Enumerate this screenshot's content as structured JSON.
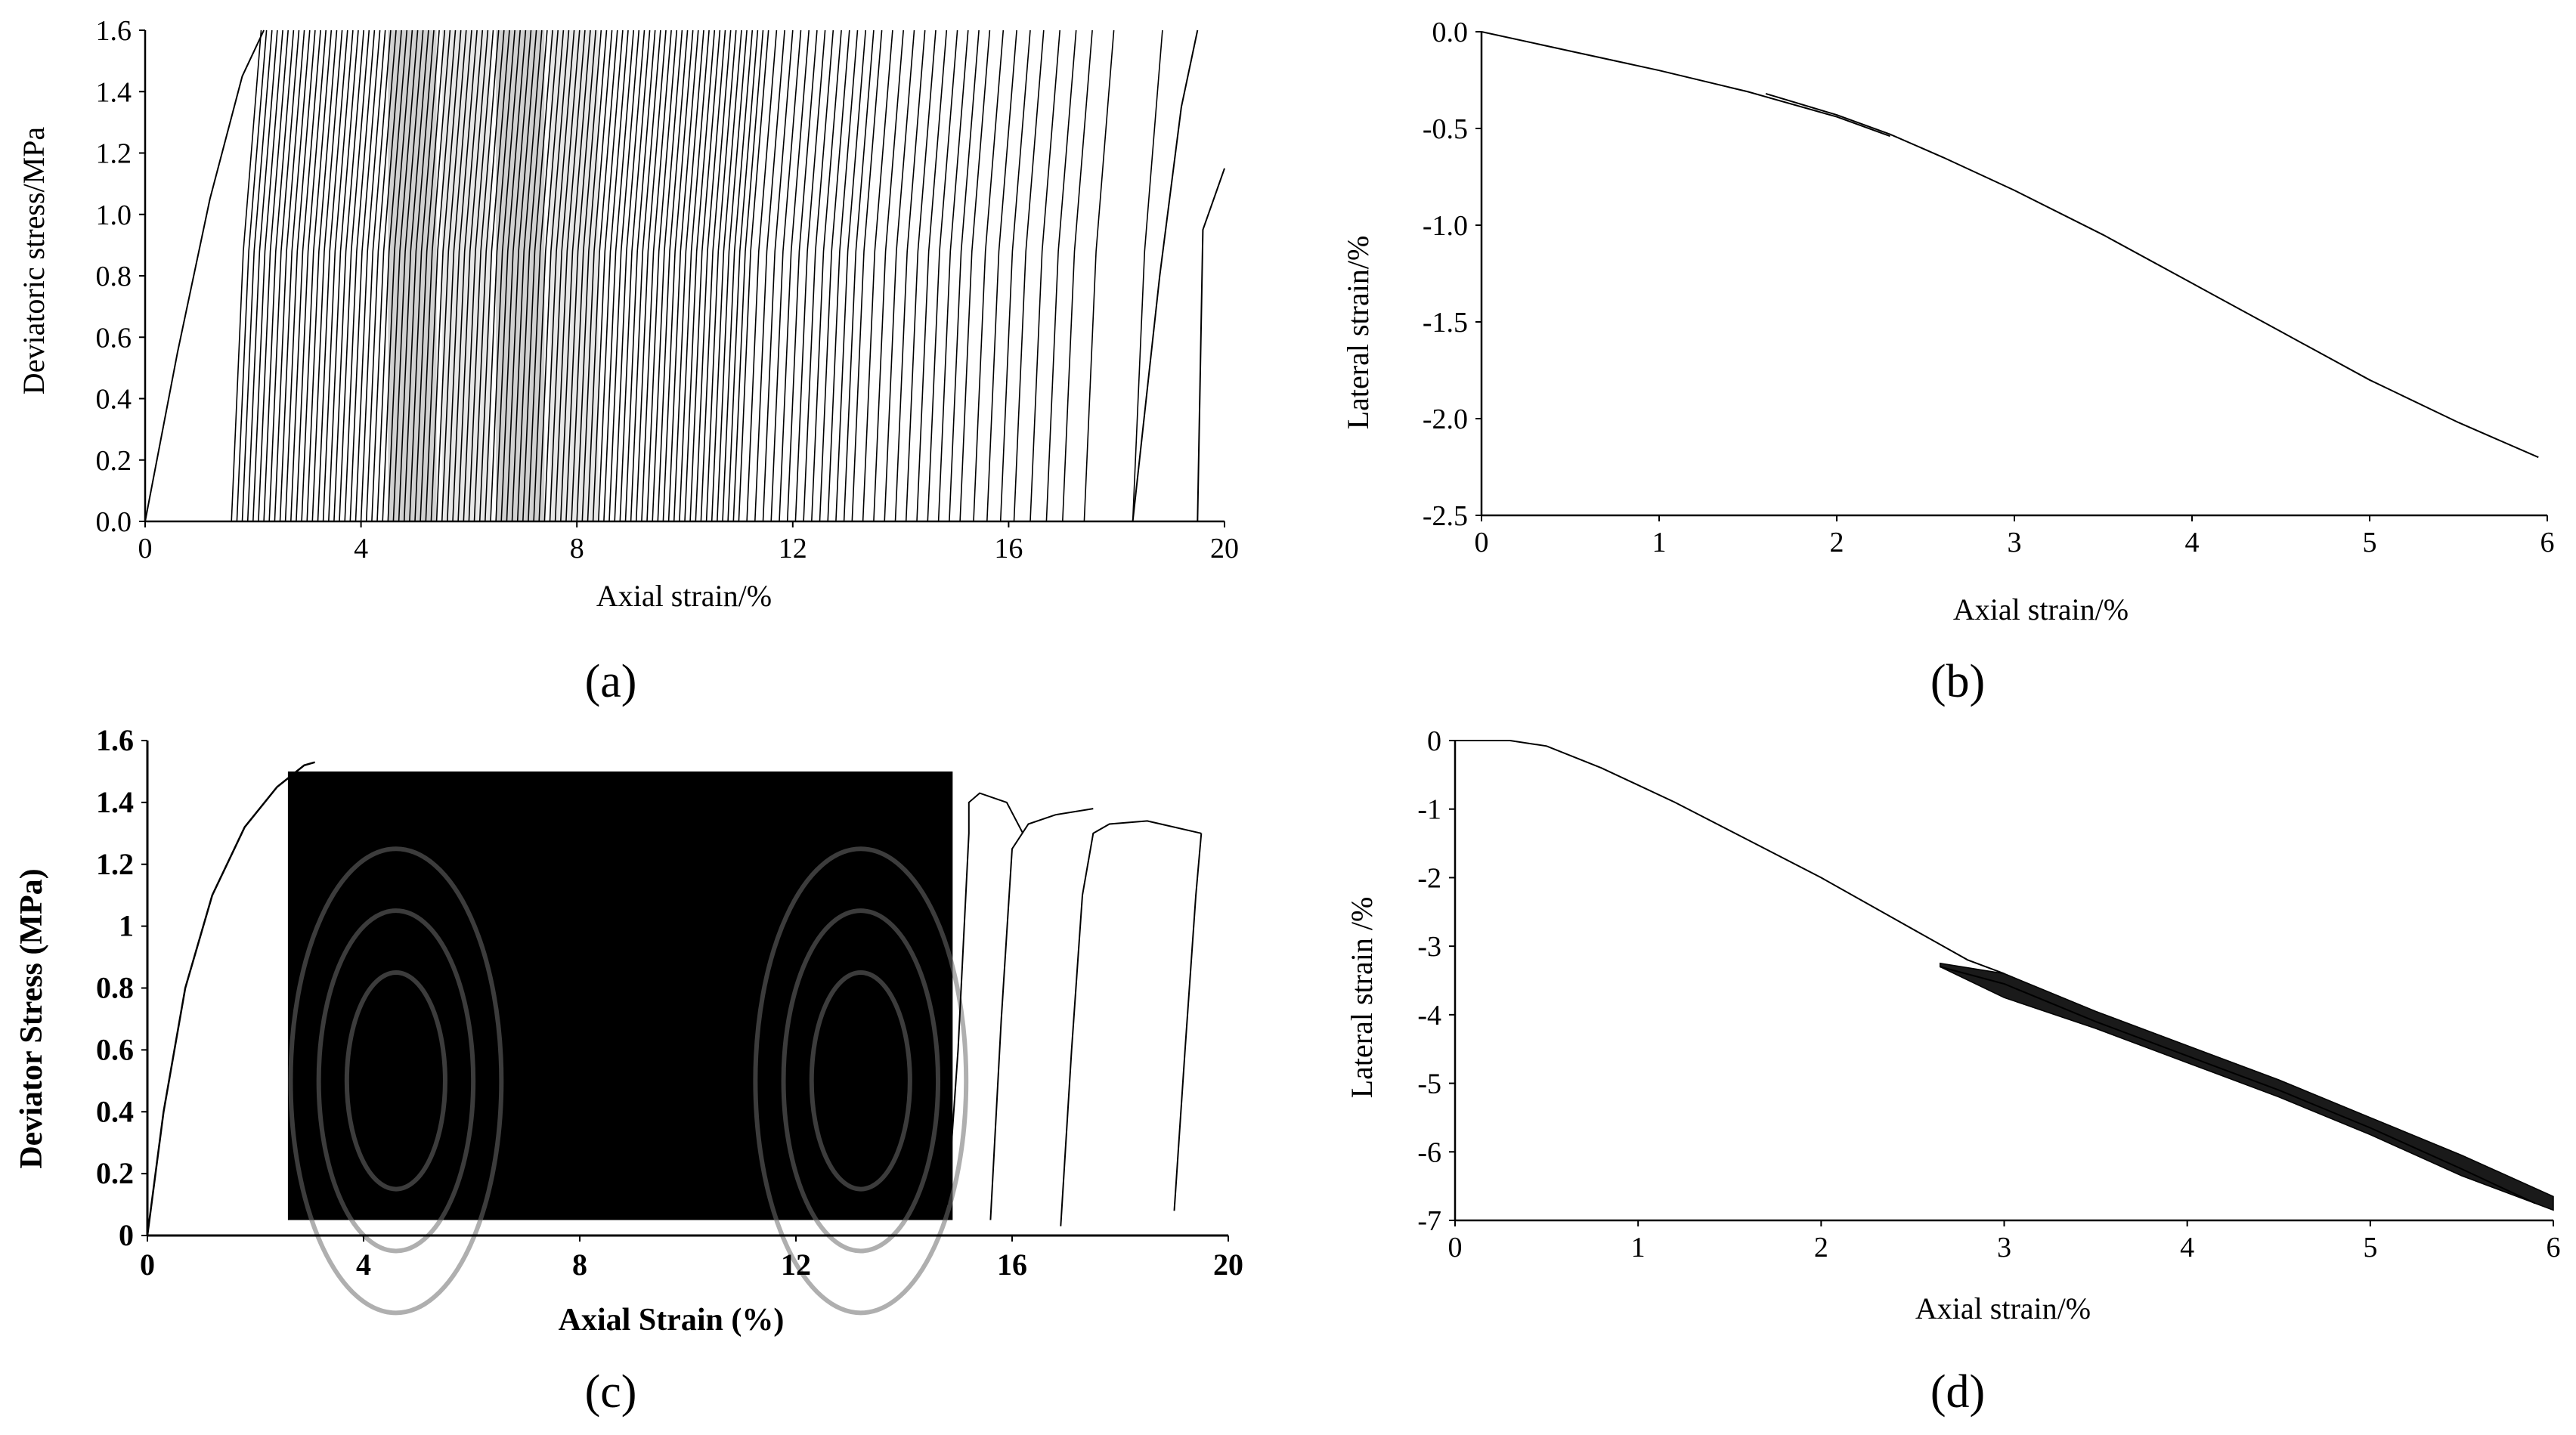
{
  "chart_data": [
    {
      "panel": "(a)",
      "type": "line",
      "xlabel": "Axial strain/%",
      "ylabel": "Deviatoric stress/MPa",
      "xlim": [
        0,
        20
      ],
      "ylim": [
        0,
        1.6
      ],
      "x_ticks": [
        "0",
        "4",
        "8",
        "12",
        "16",
        "20"
      ],
      "y_ticks": [
        "0.0",
        "0.2",
        "0.4",
        "0.6",
        "0.8",
        "1.0",
        "1.2",
        "1.4",
        "1.6"
      ],
      "x_tick_values": [
        0,
        4,
        8,
        12,
        16,
        20
      ],
      "y_tick_values": [
        0,
        0.2,
        0.4,
        0.6,
        0.8,
        1.0,
        1.2,
        1.4,
        1.6
      ],
      "initial_loading": {
        "x": [
          0,
          0.6,
          1.2,
          1.8,
          2.2
        ],
        "y": [
          0,
          0.55,
          1.05,
          1.45,
          1.6
        ]
      },
      "cycle_minima_x": [
        1.6,
        1.7,
        1.8,
        1.9,
        2.0,
        2.1,
        2.2,
        2.3,
        2.4,
        2.5,
        2.6,
        2.7,
        2.8,
        2.9,
        3.0,
        3.1,
        3.2,
        3.3,
        3.4,
        3.5,
        3.6,
        3.7,
        3.8,
        3.9,
        4.0,
        4.1,
        4.2,
        4.3,
        4.4,
        4.5,
        4.6,
        4.7,
        4.8,
        4.9,
        5.0,
        5.1,
        5.2,
        5.3,
        5.4,
        5.5,
        5.6,
        5.7,
        5.8,
        5.9,
        6.0,
        6.1,
        6.2,
        6.3,
        6.4,
        6.5,
        6.6,
        6.7,
        6.8,
        6.9,
        7.0,
        7.1,
        7.2,
        7.3,
        7.4,
        7.5,
        7.6,
        7.7,
        7.8,
        7.9,
        8.0,
        8.1,
        8.2,
        8.3,
        8.4,
        8.5,
        8.6,
        8.7,
        8.8,
        8.9,
        9.0,
        9.1,
        9.2,
        9.3,
        9.4,
        9.5,
        9.6,
        9.7,
        9.8,
        9.9,
        10.0,
        10.1,
        10.2,
        10.3,
        10.4,
        10.5,
        10.6,
        10.7,
        10.8,
        10.9,
        11.0,
        11.15,
        11.3,
        11.45,
        11.6,
        11.75,
        11.9,
        12.05,
        12.2,
        12.35,
        12.5,
        12.65,
        12.8,
        12.95,
        13.1,
        13.3,
        13.5,
        13.7,
        13.9,
        14.1,
        14.3,
        14.5,
        14.7,
        14.9,
        15.1,
        15.35,
        15.6,
        15.85,
        16.1,
        16.4,
        16.7,
        17.0,
        17.4,
        18.3
      ],
      "cycle_peak_offset": 0.55,
      "cycle_max_y": 1.6,
      "cycle_min_y": 0,
      "final_branch": {
        "x": [
          18.3,
          18.8,
          19.2,
          19.5
        ],
        "y": [
          0,
          0.8,
          1.35,
          1.6
        ]
      },
      "tail": {
        "x": [
          19.5,
          19.6,
          19.9,
          20.0
        ],
        "y": [
          0,
          0.95,
          1.1,
          1.15
        ]
      }
    },
    {
      "panel": "(b)",
      "type": "line",
      "xlabel": "Axial strain/%",
      "ylabel": "Lateral strain/%",
      "xlim": [
        0,
        6
      ],
      "ylim": [
        -2.5,
        0
      ],
      "x_ticks": [
        "0",
        "1",
        "2",
        "3",
        "4",
        "5",
        "6"
      ],
      "y_ticks": [
        "0.0",
        "-0.5",
        "-1.0",
        "-1.5",
        "-2.0",
        "-2.5"
      ],
      "x_tick_values": [
        0,
        1,
        2,
        3,
        4,
        5,
        6
      ],
      "y_tick_values": [
        0,
        -0.5,
        -1.0,
        -1.5,
        -2.0,
        -2.5
      ],
      "series": [
        {
          "x": [
            0,
            0.5,
            1.0,
            1.5,
            2.0,
            2.3
          ],
          "y": [
            0,
            -0.1,
            -0.2,
            -0.31,
            -0.44,
            -0.54
          ]
        },
        {
          "x": [
            1.6,
            2.0,
            2.3,
            2.6,
            3.0,
            3.5,
            4.0,
            4.5,
            5.0,
            5.5,
            5.95
          ],
          "y": [
            -0.32,
            -0.43,
            -0.53,
            -0.65,
            -0.82,
            -1.05,
            -1.3,
            -1.55,
            -1.8,
            -2.02,
            -2.2
          ]
        }
      ]
    },
    {
      "panel": "(c)",
      "type": "line",
      "xlabel": "Axial Strain (%)",
      "ylabel": "Deviator Stress (MPa)",
      "xlim": [
        0,
        20
      ],
      "ylim": [
        0,
        1.6
      ],
      "x_ticks": [
        "0",
        "4",
        "8",
        "12",
        "16",
        "20"
      ],
      "y_ticks": [
        "0",
        "0.2",
        "0.4",
        "0.6",
        "0.8",
        "1",
        "1.2",
        "1.4",
        "1.6"
      ],
      "x_tick_values": [
        0,
        4,
        8,
        12,
        16,
        20
      ],
      "y_tick_values": [
        0,
        0.2,
        0.4,
        0.6,
        0.8,
        1.0,
        1.2,
        1.4,
        1.6
      ],
      "initial_loading": {
        "x": [
          0,
          0.3,
          0.7,
          1.2,
          1.8,
          2.4,
          2.9,
          3.1
        ],
        "y": [
          0,
          0.4,
          0.8,
          1.1,
          1.32,
          1.45,
          1.52,
          1.53
        ]
      },
      "dense_region": {
        "x_start": 2.6,
        "x_end": 14.9,
        "y_low": 0.05,
        "y_high": 1.5
      },
      "late_cycles": [
        {
          "x": [
            14.8,
            15.0,
            15.2,
            15.2,
            15.4,
            15.9,
            16.2
          ],
          "y": [
            0.1,
            0.6,
            1.3,
            1.4,
            1.43,
            1.4,
            1.3
          ]
        },
        {
          "x": [
            15.6,
            15.8,
            16.0,
            16.3,
            16.8,
            17.5
          ],
          "y": [
            0.05,
            0.7,
            1.25,
            1.33,
            1.36,
            1.38
          ]
        },
        {
          "x": [
            16.9,
            17.1,
            17.3,
            17.5,
            17.8,
            18.5,
            19.5
          ],
          "y": [
            0.03,
            0.6,
            1.1,
            1.3,
            1.33,
            1.34,
            1.3
          ]
        },
        {
          "x": [
            19.0,
            19.2,
            19.4,
            19.5
          ],
          "y": [
            0.08,
            0.6,
            1.1,
            1.3
          ]
        }
      ]
    },
    {
      "panel": "(d)",
      "type": "line",
      "xlabel": "Axial strain/%",
      "ylabel": "Lateral  strain /%",
      "xlim": [
        0,
        6
      ],
      "ylim": [
        -7,
        0
      ],
      "x_ticks": [
        "0",
        "1",
        "2",
        "3",
        "4",
        "5",
        "6"
      ],
      "y_ticks": [
        "0",
        "-1",
        "-2",
        "-3",
        "-4",
        "-5",
        "-6",
        "-7"
      ],
      "x_tick_values": [
        0,
        1,
        2,
        3,
        4,
        5,
        6
      ],
      "y_tick_values": [
        0,
        -1,
        -2,
        -3,
        -4,
        -5,
        -6,
        -7
      ],
      "series": [
        {
          "x": [
            0,
            0.3,
            0.5,
            0.8,
            1.2,
            1.6,
            2.0,
            2.4,
            2.8,
            3.0
          ],
          "y": [
            0,
            0,
            -0.08,
            -0.4,
            -0.9,
            -1.45,
            -2.0,
            -2.6,
            -3.2,
            -3.4
          ]
        },
        {
          "x": [
            2.65,
            3.0,
            3.5,
            4.0,
            4.5,
            5.0,
            5.5,
            5.9
          ],
          "y": [
            -3.3,
            -3.55,
            -4.1,
            -4.6,
            -5.1,
            -5.65,
            -6.25,
            -6.75
          ]
        }
      ],
      "hysteresis_band": {
        "x": [
          2.65,
          3.0,
          3.5,
          4.0,
          4.5,
          5.0,
          5.5,
          6.0
        ],
        "upper": [
          -3.25,
          -3.4,
          -3.95,
          -4.45,
          -4.95,
          -5.5,
          -6.05,
          -6.65
        ],
        "lower": [
          -3.3,
          -3.75,
          -4.2,
          -4.7,
          -5.2,
          -5.75,
          -6.35,
          -6.85
        ]
      }
    }
  ],
  "captions": {
    "a": "(a)",
    "b": "(b)",
    "c": "(c)",
    "d": "(d)"
  }
}
